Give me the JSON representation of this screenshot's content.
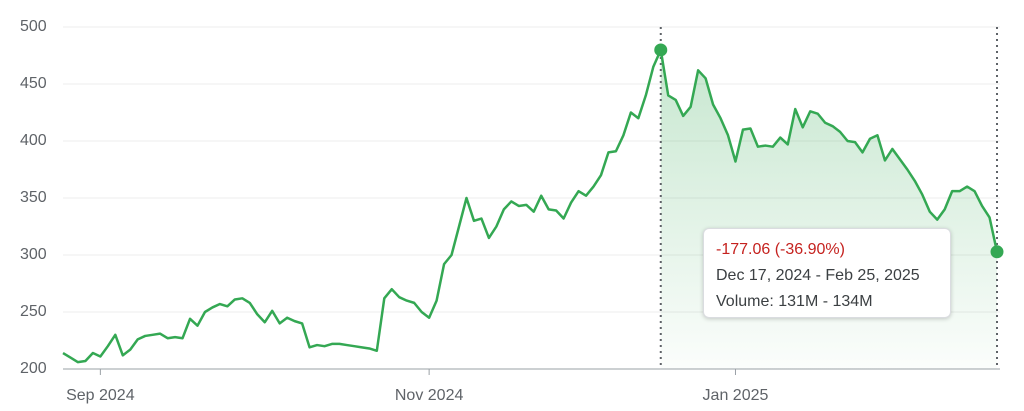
{
  "chart_data": {
    "type": "line",
    "categories": [
      null,
      null,
      null,
      null,
      null,
      "Sep 2024",
      null,
      null,
      null,
      null,
      null,
      null,
      null,
      null,
      null,
      null,
      null,
      null,
      null,
      null,
      null,
      null,
      null,
      null,
      null,
      null,
      null,
      null,
      null,
      null,
      null,
      null,
      null,
      null,
      null,
      null,
      null,
      null,
      null,
      null,
      null,
      null,
      null,
      null,
      null,
      null,
      null,
      null,
      null,
      "Nov 2024",
      null,
      null,
      null,
      null,
      null,
      null,
      null,
      null,
      null,
      null,
      null,
      null,
      null,
      null,
      null,
      null,
      null,
      null,
      null,
      null,
      null,
      null,
      null,
      null,
      null,
      null,
      null,
      null,
      null,
      null,
      null,
      null,
      null,
      null,
      null,
      null,
      null,
      null,
      null,
      null,
      "Jan 2025",
      null,
      null,
      null,
      null,
      null,
      null,
      null,
      null,
      null,
      null,
      null,
      null,
      null,
      null,
      null,
      null,
      null,
      null,
      null,
      null,
      null,
      null,
      null,
      null,
      null,
      null,
      null,
      null,
      null,
      null,
      null,
      null,
      null,
      null,
      null
    ],
    "values": [
      214,
      210,
      206,
      207,
      214,
      211,
      220,
      230,
      212,
      217,
      226,
      229,
      230,
      231,
      227,
      228,
      227,
      244,
      238,
      250,
      254,
      257,
      255,
      261,
      262,
      258,
      248,
      241,
      251,
      240,
      245,
      242,
      240,
      219,
      221,
      220,
      222,
      222,
      221,
      220,
      219,
      218,
      216,
      262,
      270,
      263,
      260,
      258,
      250,
      245,
      260,
      292,
      300,
      325,
      350,
      330,
      332,
      315,
      325,
      340,
      347,
      343,
      344,
      338,
      352,
      340,
      339,
      332,
      346,
      356,
      352,
      360,
      370,
      390,
      391,
      405,
      425,
      420,
      440,
      465,
      479.86,
      440,
      436,
      422,
      430,
      462,
      455,
      432,
      420,
      405,
      382,
      410,
      411,
      395,
      396,
      395,
      403,
      397,
      428,
      412,
      426,
      424,
      416,
      413,
      408,
      400,
      399,
      390,
      402,
      405,
      383,
      393,
      384,
      375,
      365,
      353,
      338,
      331,
      340,
      356,
      356,
      360,
      356,
      343,
      333,
      302.8
    ],
    "color": "#34a853",
    "ylim": [
      200,
      500
    ],
    "yticks": [
      200,
      250,
      300,
      350,
      400,
      450,
      500
    ],
    "grid": true,
    "selection": [
      80,
      125
    ],
    "annotation": {
      "change": "-177.06 (-36.90%)",
      "range": "Dec 17, 2024 - Feb 25, 2025",
      "volume": "Volume: 131M - 134M"
    }
  }
}
